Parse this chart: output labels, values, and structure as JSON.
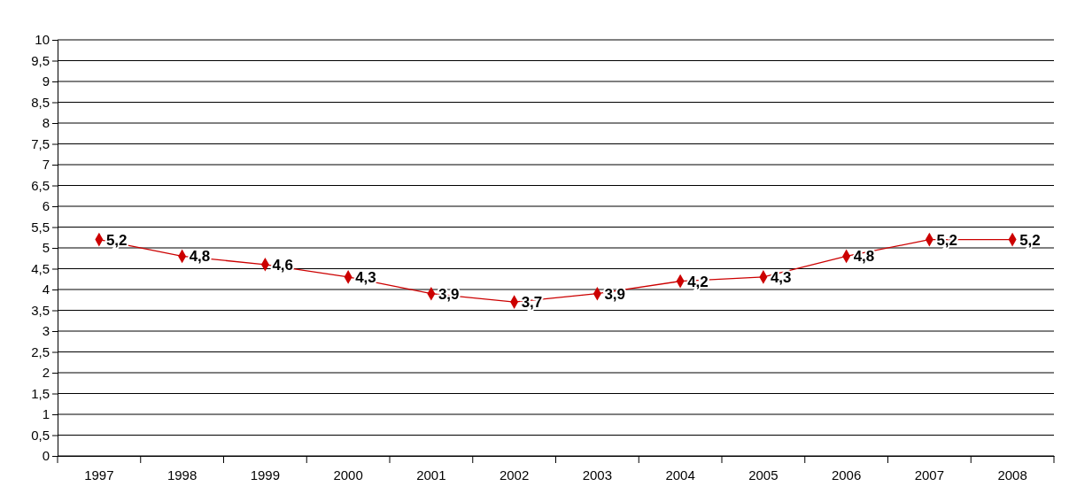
{
  "chart_data": {
    "type": "line",
    "categories": [
      "1997",
      "1998",
      "1999",
      "2000",
      "2001",
      "2002",
      "2003",
      "2004",
      "2005",
      "2006",
      "2007",
      "2008"
    ],
    "series": [
      {
        "color": "#cc0000",
        "values": [
          5.2,
          4.8,
          4.6,
          4.3,
          3.9,
          3.7,
          3.9,
          4.2,
          4.3,
          4.8,
          5.2,
          5.2
        ],
        "value_labels": [
          "5,2",
          "4,8",
          "4,6",
          "4,3",
          "3,9",
          "3,7",
          "3,9",
          "4,2",
          "4,3",
          "4,8",
          "5,2",
          "5,2"
        ]
      }
    ],
    "ylim": [
      0,
      10
    ],
    "yticks": [
      0,
      {
        "value": 0.5,
        "label": "0,5"
      },
      1,
      {
        "value": 1.5,
        "label": "1,5"
      },
      2,
      {
        "value": 2.5,
        "label": "2,5"
      },
      3,
      {
        "value": 3.5,
        "label": "3,5"
      },
      4,
      {
        "value": 4.5,
        "label": "4,5"
      },
      5,
      {
        "value": 5.5,
        "label": "5,5"
      },
      6,
      {
        "value": 6.5,
        "label": "6,5"
      },
      7,
      {
        "value": 7.5,
        "label": "7,5"
      },
      8,
      {
        "value": 8.5,
        "label": "8,5"
      },
      9,
      {
        "value": 9.5,
        "label": "9,5"
      },
      10
    ],
    "grid": "y",
    "marker": "diamond",
    "line_style": "solid"
  }
}
